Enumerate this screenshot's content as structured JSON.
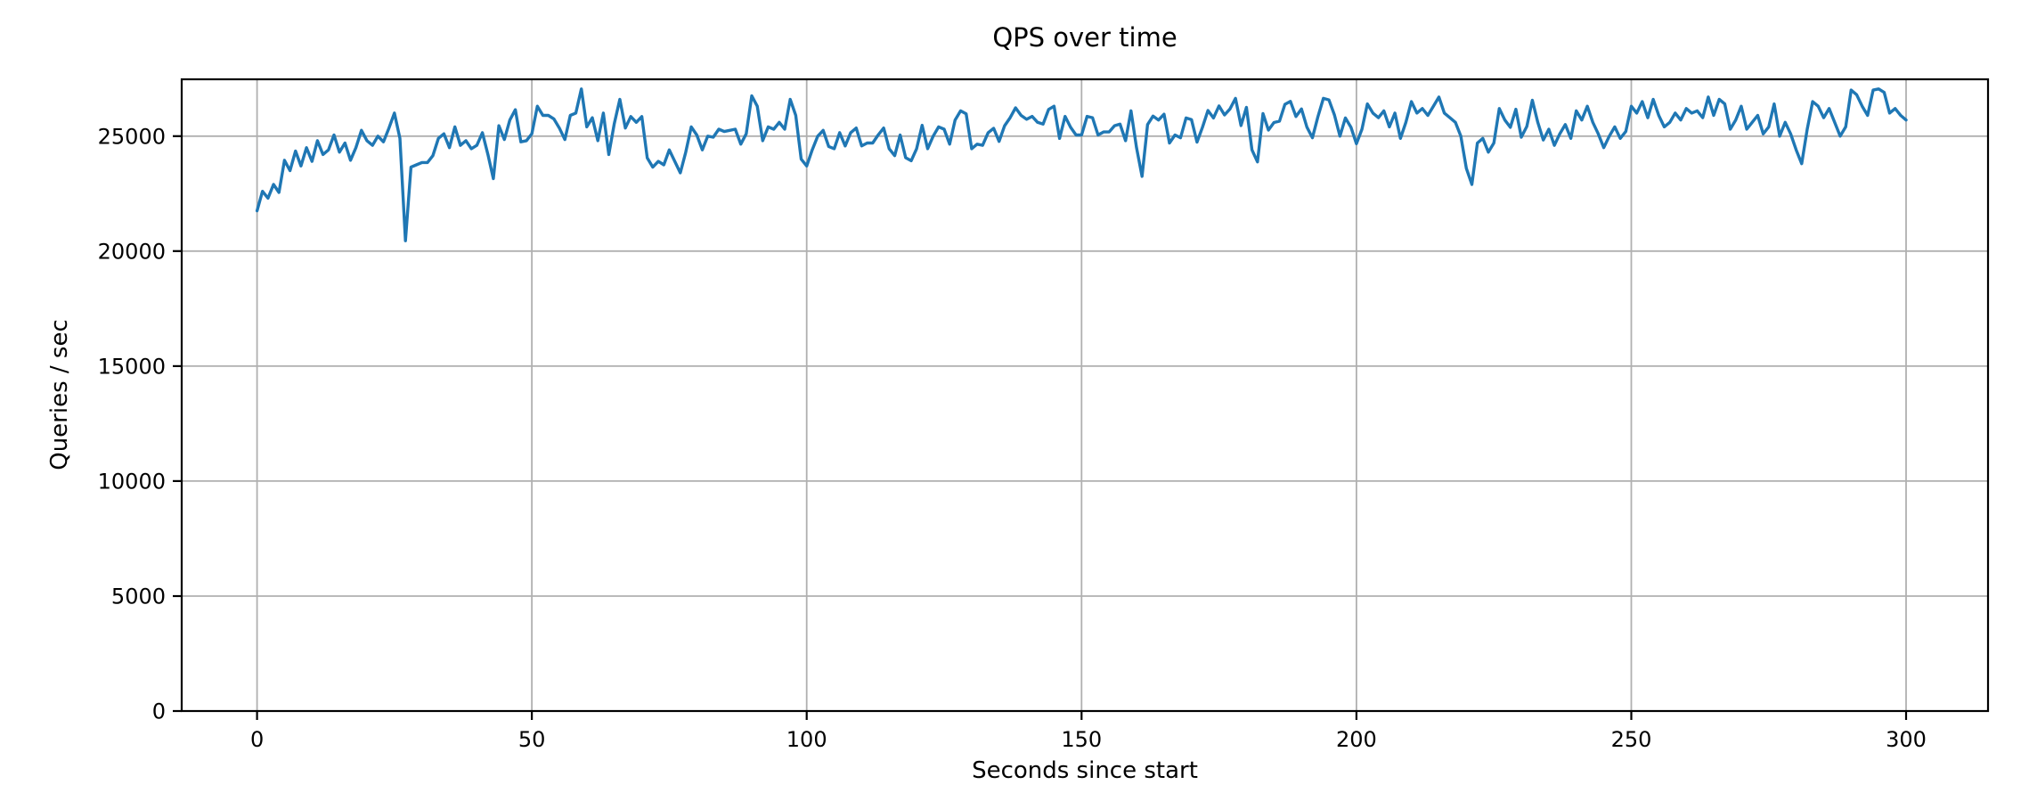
{
  "figure": {
    "background": "#ffffff",
    "text_color": "#000000"
  },
  "chart_data": {
    "type": "line",
    "title": "QPS over time",
    "xlabel": "Seconds since start",
    "ylabel": "Queries / sec",
    "line_color": "#1f77b4",
    "line_width": 3.4,
    "grid": true,
    "grid_color": "#b0b0b0",
    "spine_color": "#000000",
    "legend": "none",
    "x_ticks": [
      0,
      50,
      100,
      150,
      200,
      250,
      300
    ],
    "x_tick_labels": [
      "0",
      "50",
      "100",
      "150",
      "200",
      "250",
      "300"
    ],
    "y_ticks": [
      0,
      5000,
      10000,
      15000,
      20000,
      25000
    ],
    "y_tick_labels": [
      "0",
      "5000",
      "10000",
      "15000",
      "20000",
      "25000"
    ],
    "xlim": [
      -13.7,
      314.9
    ],
    "ylim": [
      0,
      27470
    ],
    "x_start": 0,
    "x_step": 1,
    "values": [
      21750,
      22600,
      22300,
      22900,
      22550,
      23950,
      23500,
      24350,
      23700,
      24500,
      23900,
      24800,
      24200,
      24400,
      25050,
      24300,
      24700,
      23950,
      24500,
      25250,
      24800,
      24600,
      25000,
      24750,
      25350,
      26000,
      24900,
      20450,
      23650,
      23750,
      23850,
      23850,
      24150,
      24900,
      25100,
      24500,
      25400,
      24600,
      24800,
      24450,
      24600,
      25150,
      24200,
      23150,
      25450,
      24850,
      25700,
      26150,
      24750,
      24800,
      25100,
      26300,
      25900,
      25900,
      25750,
      25350,
      24850,
      25900,
      26000,
      27050,
      25400,
      25800,
      24800,
      26000,
      24200,
      25550,
      26600,
      25350,
      25850,
      25600,
      25850,
      24050,
      23650,
      23900,
      23750,
      24400,
      23900,
      23400,
      24300,
      25400,
      25050,
      24400,
      25000,
      24950,
      25300,
      25200,
      25250,
      25300,
      24650,
      25100,
      26750,
      26300,
      24800,
      25400,
      25300,
      25600,
      25300,
      26600,
      25900,
      24000,
      23700,
      24400,
      25000,
      25250,
      24550,
      24450,
      25150,
      24570,
      25150,
      25350,
      24570,
      24700,
      24700,
      25050,
      25350,
      24450,
      24150,
      25050,
      24060,
      23930,
      24450,
      25470,
      24450,
      25000,
      25400,
      25300,
      24650,
      25700,
      26100,
      25970,
      24450,
      24650,
      24600,
      25150,
      25340,
      24770,
      25450,
      25800,
      26230,
      25900,
      25730,
      25860,
      25600,
      25520,
      26160,
      26300,
      24900,
      25860,
      25380,
      25050,
      25050,
      25860,
      25800,
      25050,
      25180,
      25180,
      25450,
      25520,
      24800,
      26100,
      24500,
      23250,
      25500,
      25870,
      25700,
      25950,
      24700,
      25050,
      24930,
      25790,
      25720,
      24740,
      25390,
      26115,
      25790,
      26310,
      25920,
      26180,
      26640,
      25460,
      26250,
      24400,
      23880,
      25980,
      25260,
      25590,
      25650,
      26380,
      26510,
      25850,
      26180,
      25390,
      24930,
      25850,
      26640,
      26575,
      25920,
      25000,
      25790,
      25390,
      24670,
      25300,
      26400,
      26000,
      25800,
      26100,
      25400,
      26000,
      24900,
      25600,
      26500,
      26000,
      26200,
      25900,
      26300,
      26700,
      26000,
      25800,
      25600,
      25000,
      23600,
      22900,
      24700,
      24900,
      24300,
      24700,
      26200,
      25700,
      25380,
      26170,
      24950,
      25420,
      26560,
      25600,
      24830,
      25300,
      24600,
      25100,
      25500,
      24900,
      26100,
      25700,
      26300,
      25600,
      25100,
      24500,
      25000,
      25400,
      24900,
      25200,
      26300,
      26000,
      26500,
      25800,
      26600,
      25900,
      25400,
      25600,
      26000,
      25700,
      26200,
      26000,
      26100,
      25800,
      26700,
      25900,
      26600,
      26400,
      25300,
      25700,
      26300,
      25300,
      25600,
      25900,
      25100,
      25400,
      26400,
      25000,
      25600,
      25100,
      24400,
      23800,
      25300,
      26500,
      26300,
      25800,
      26200,
      25600,
      25000,
      25400,
      27000,
      26800,
      26300,
      25900,
      27000,
      27050,
      26900,
      26000,
      26200,
      25900,
      25700
    ]
  }
}
